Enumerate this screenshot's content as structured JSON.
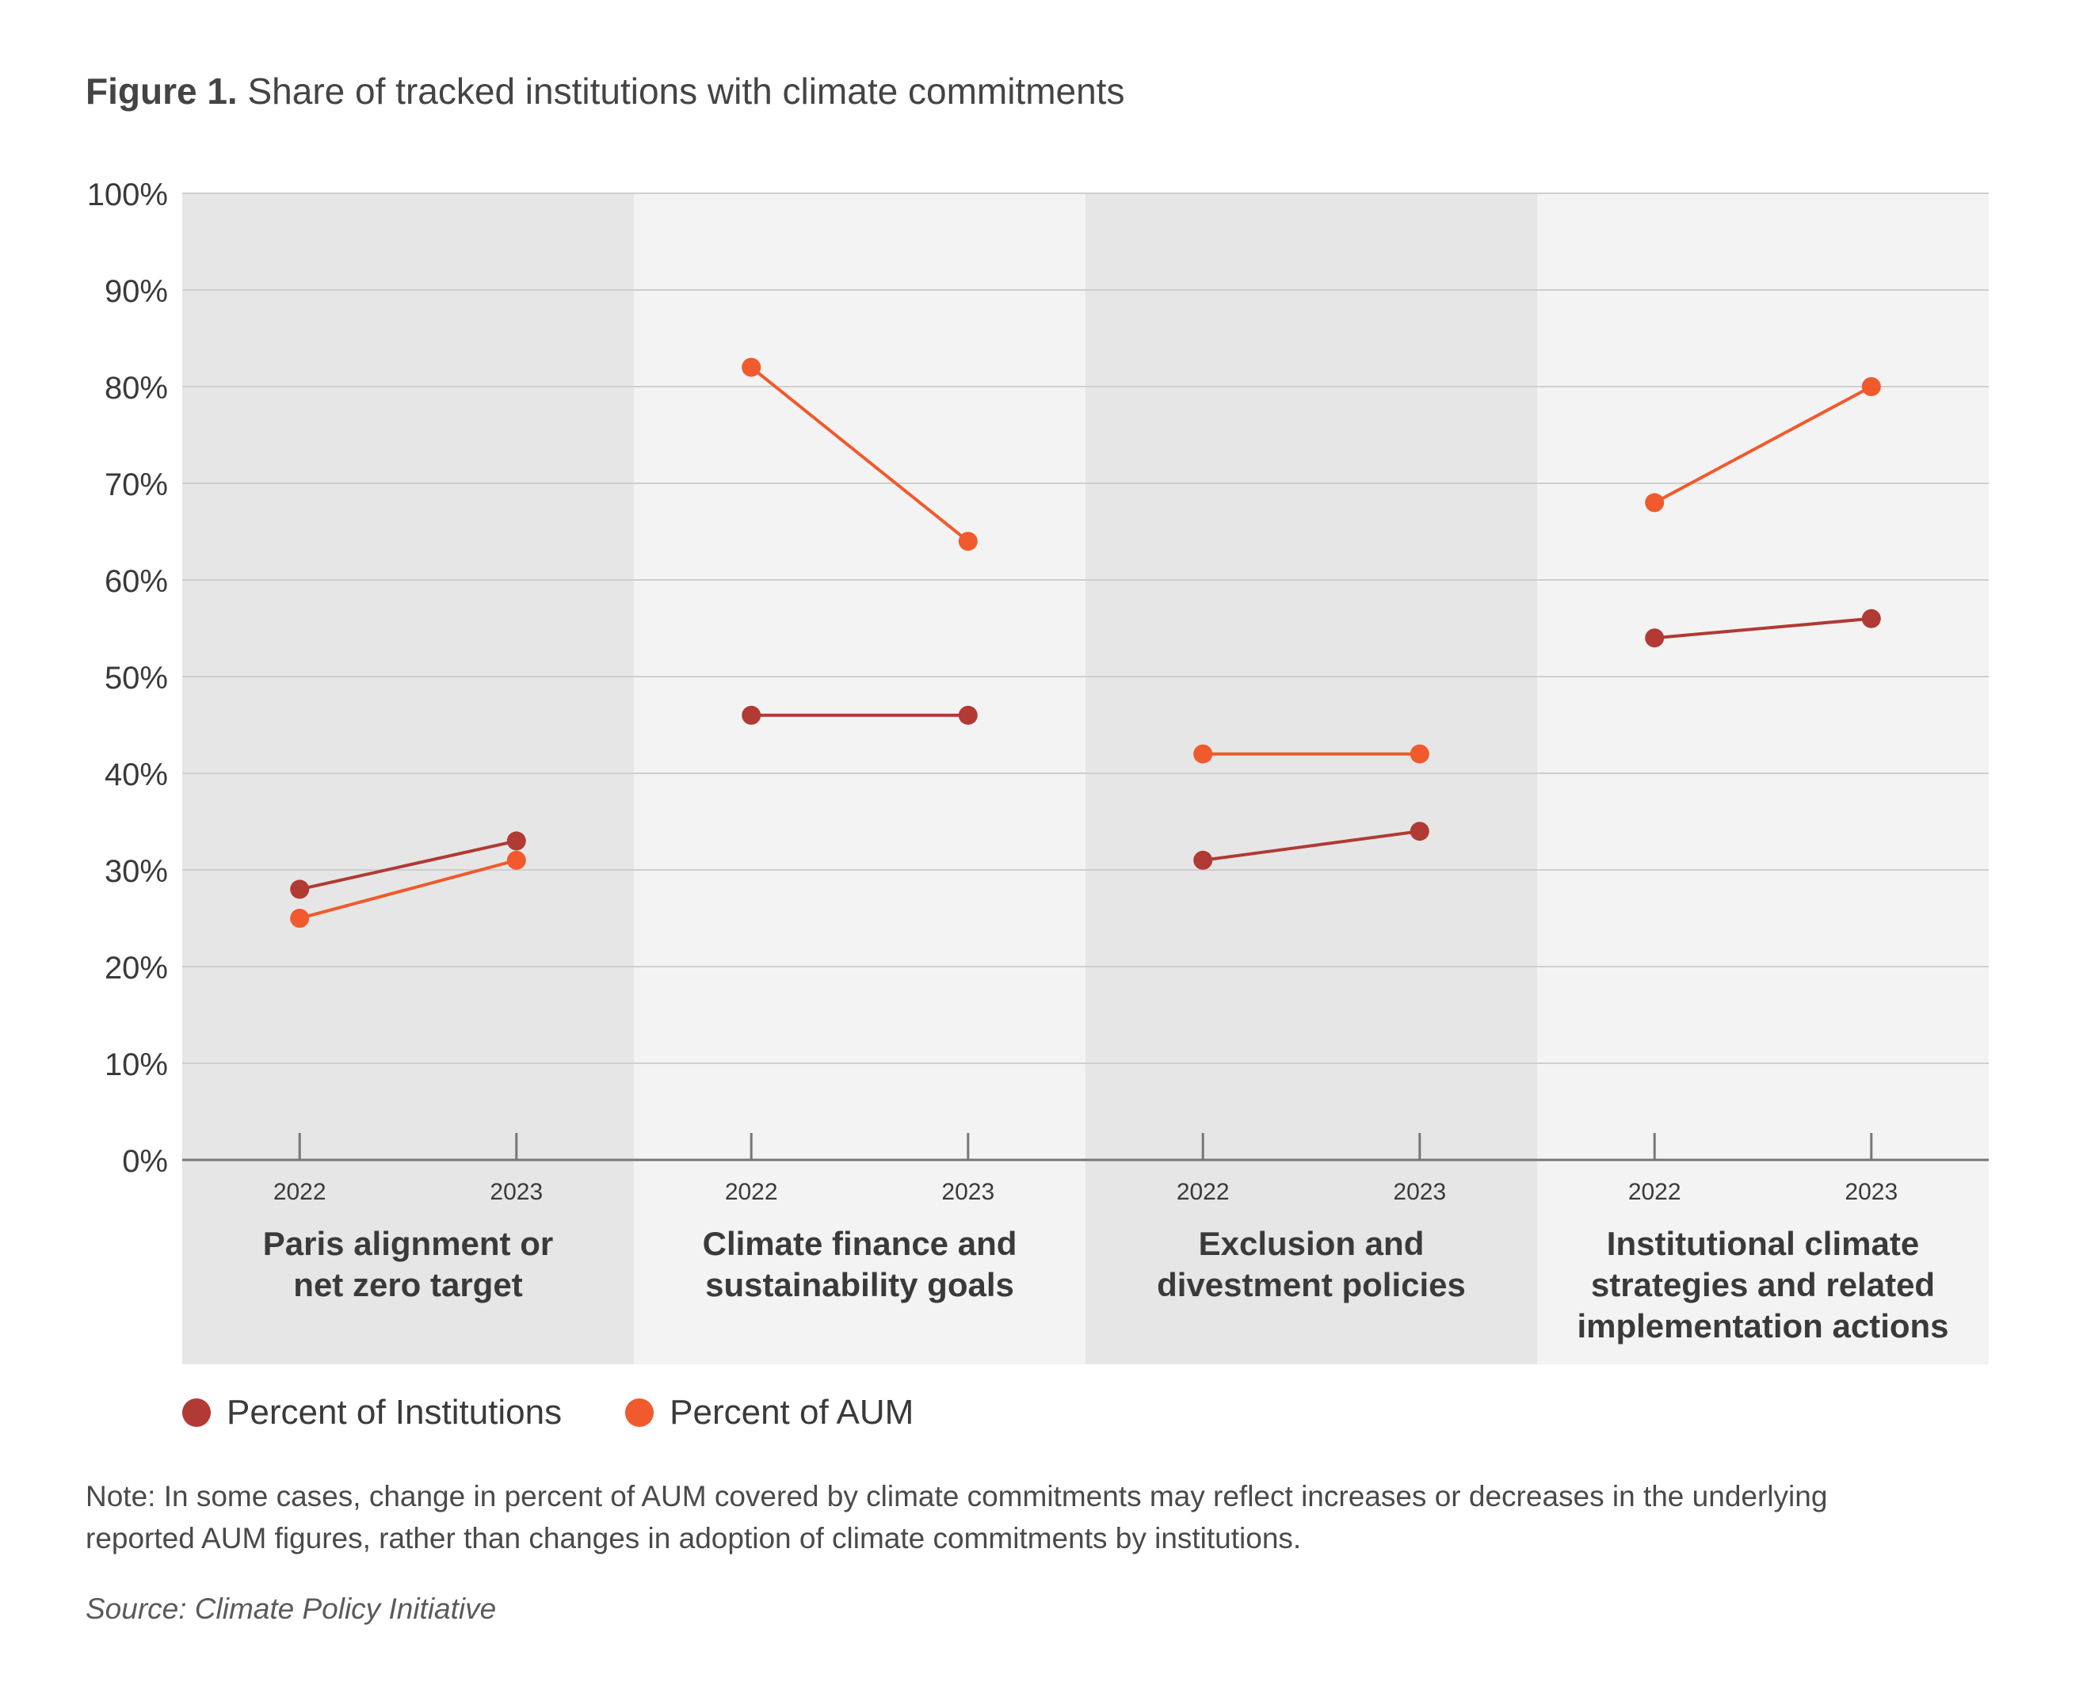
{
  "title": {
    "label": "Figure 1.",
    "text": "Share of tracked institutions with climate commitments"
  },
  "chart_data": {
    "type": "line",
    "ylim": [
      0,
      100
    ],
    "y_ticks": [
      "0%",
      "10%",
      "20%",
      "30%",
      "40%",
      "50%",
      "60%",
      "70%",
      "80%",
      "90%",
      "100%"
    ],
    "grid": true,
    "groups": [
      {
        "name": "Paris alignment or net zero target",
        "label_lines": [
          "Paris alignment or",
          "net zero target"
        ],
        "x": [
          "2022",
          "2023"
        ],
        "institutions": [
          28,
          33
        ],
        "aum": [
          25,
          31
        ]
      },
      {
        "name": "Climate finance and sustainability goals",
        "label_lines": [
          "Climate finance and",
          "sustainability goals"
        ],
        "x": [
          "2022",
          "2023"
        ],
        "institutions": [
          46,
          46
        ],
        "aum": [
          82,
          64
        ]
      },
      {
        "name": "Exclusion and divestment policies",
        "label_lines": [
          "Exclusion and",
          "divestment policies"
        ],
        "x": [
          "2022",
          "2023"
        ],
        "institutions": [
          31,
          34
        ],
        "aum": [
          42,
          42
        ]
      },
      {
        "name": "Institutional climate strategies and related implementation actions",
        "label_lines": [
          "Institutional climate",
          "strategies and related",
          "implementation actions"
        ],
        "x": [
          "2022",
          "2023"
        ],
        "institutions": [
          54,
          56
        ],
        "aum": [
          68,
          80
        ]
      }
    ],
    "series": [
      {
        "key": "institutions",
        "name": "Percent of Institutions",
        "color": "#b13a34"
      },
      {
        "key": "aum",
        "name": "Percent of AUM",
        "color": "#f05a2c"
      }
    ],
    "legend_position": "bottom-left"
  },
  "legend": {
    "institutions_label": "Percent of Institutions",
    "aum_label": "Percent of AUM"
  },
  "note": "Note: In some cases, change in percent of AUM covered by climate commitments may reflect increases or decreases in the underlying reported AUM figures, rather than changes in adoption of climate commitments by institutions.",
  "source": "Source: Climate Policy Initiative",
  "colors": {
    "panel_dark": "#e6e6e6",
    "panel_light": "#f3f3f3",
    "gridline": "#cfcfcf",
    "axis": "#777777"
  }
}
